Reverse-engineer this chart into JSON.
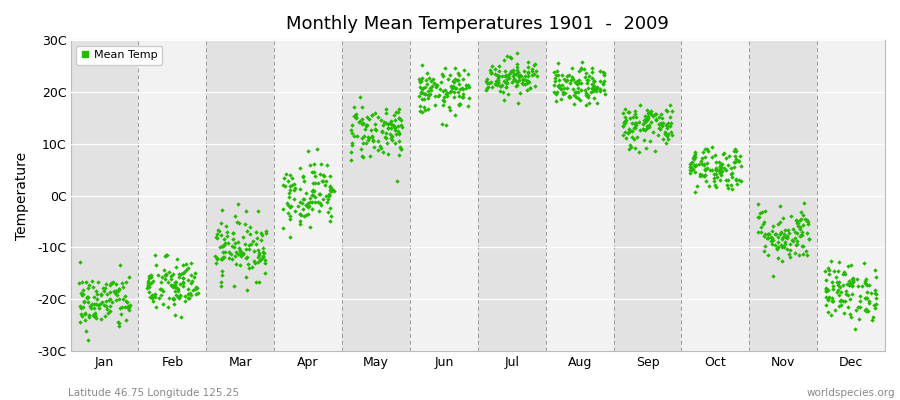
{
  "title": "Monthly Mean Temperatures 1901  -  2009",
  "ylabel": "Temperature",
  "ylim": [
    -30,
    30
  ],
  "ytick_labels": [
    "-30C",
    "-20C",
    "-10C",
    "0C",
    "10C",
    "20C",
    "30C"
  ],
  "ytick_values": [
    -30,
    -20,
    -10,
    0,
    10,
    20,
    30
  ],
  "months": [
    "Jan",
    "Feb",
    "Mar",
    "Apr",
    "May",
    "Jun",
    "Jul",
    "Aug",
    "Sep",
    "Oct",
    "Nov",
    "Dec"
  ],
  "point_color": "#22bb00",
  "bg_color": "#ebebeb",
  "panel_odd": "#e2e2e2",
  "panel_even": "#f2f2f2",
  "legend_label": "Mean Temp",
  "subtitle_left": "Latitude 46.75 Longitude 125.25",
  "subtitle_right": "worldspecies.org",
  "n_years": 109,
  "monthly_means": [
    -20.5,
    -17.5,
    -10.0,
    0.5,
    12.5,
    20.0,
    23.0,
    21.0,
    13.5,
    5.5,
    -7.5,
    -18.5
  ],
  "monthly_stds": [
    2.8,
    2.8,
    3.0,
    3.2,
    2.8,
    2.2,
    1.8,
    1.8,
    2.2,
    2.2,
    2.8,
    2.8
  ],
  "seed": 42
}
